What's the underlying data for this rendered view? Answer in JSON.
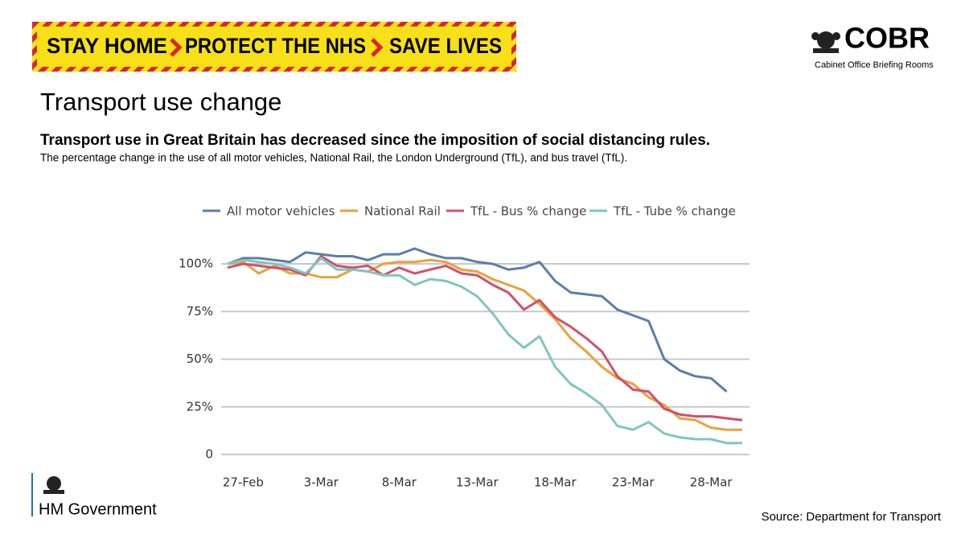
{
  "banner": [
    "STAY HOME",
    "PROTECT THE NHS",
    "SAVE LIVES"
  ],
  "logo": {
    "name": "COBR",
    "subtitle": "Cabinet Office Briefing Rooms"
  },
  "chart_data": {
    "type": "line",
    "title": "Transport use change",
    "subtitle": "Transport use in Great Britain has decreased since the imposition of social distancing rules.",
    "caption": "The percentage change in the use of all motor vehicles, National Rail, the London Underground (TfL), and bus travel (TfL).",
    "categories": [
      null,
      "27-Feb",
      null,
      null,
      null,
      null,
      "3-Mar",
      null,
      null,
      null,
      null,
      "8-Mar",
      null,
      null,
      null,
      null,
      "13-Mar",
      null,
      null,
      null,
      null,
      "18-Mar",
      null,
      null,
      null,
      null,
      "23-Mar",
      null,
      null,
      null,
      null,
      "28-Mar",
      null,
      null
    ],
    "series": [
      {
        "name": "All motor vehicles",
        "color": "#5a7ea9",
        "values": [
          100,
          103,
          103,
          102,
          101,
          106,
          105,
          104,
          104,
          102,
          105,
          105,
          108,
          105,
          103,
          103,
          101,
          100,
          97,
          98,
          101,
          91,
          85,
          84,
          83,
          76,
          73,
          70,
          50,
          44,
          41,
          40,
          33,
          null
        ]
      },
      {
        "name": "National Rail",
        "color": "#e9a23b",
        "values": [
          100,
          101,
          95,
          99,
          95,
          95,
          93,
          93,
          97,
          96,
          100,
          101,
          101,
          102,
          101,
          97,
          96,
          92,
          89,
          86,
          79,
          71,
          61,
          54,
          46,
          40,
          37,
          30,
          26,
          19,
          18,
          14,
          13,
          13
        ]
      },
      {
        "name": "TfL - Bus % change",
        "color": "#d1506a",
        "values": [
          98,
          100,
          99,
          98,
          97,
          94,
          104,
          99,
          98,
          99,
          94,
          98,
          95,
          97,
          99,
          95,
          94,
          89,
          85,
          76,
          81,
          72,
          67,
          61,
          54,
          41,
          34,
          33,
          24,
          21,
          20,
          20,
          19,
          18
        ]
      },
      {
        "name": "TfL - Tube % change",
        "color": "#80c5bd",
        "values": [
          100,
          102,
          101,
          100,
          98,
          95,
          103,
          97,
          97,
          96,
          94,
          94,
          89,
          92,
          91,
          88,
          83,
          74,
          63,
          56,
          62,
          46,
          37,
          32,
          26,
          15,
          13,
          17,
          11,
          9,
          8,
          8,
          6,
          6
        ]
      }
    ],
    "ylim": [
      0,
      110
    ],
    "yticks": [
      0,
      {
        "value": 25,
        "label": "25%"
      },
      {
        "value": 50,
        "label": "50%"
      },
      {
        "value": 75,
        "label": "75%"
      },
      {
        "value": 100,
        "label": "100%"
      }
    ],
    "grid": true,
    "legend": "top"
  },
  "footer": {
    "government": "HM Government",
    "source": "Source: Department for Transport"
  }
}
